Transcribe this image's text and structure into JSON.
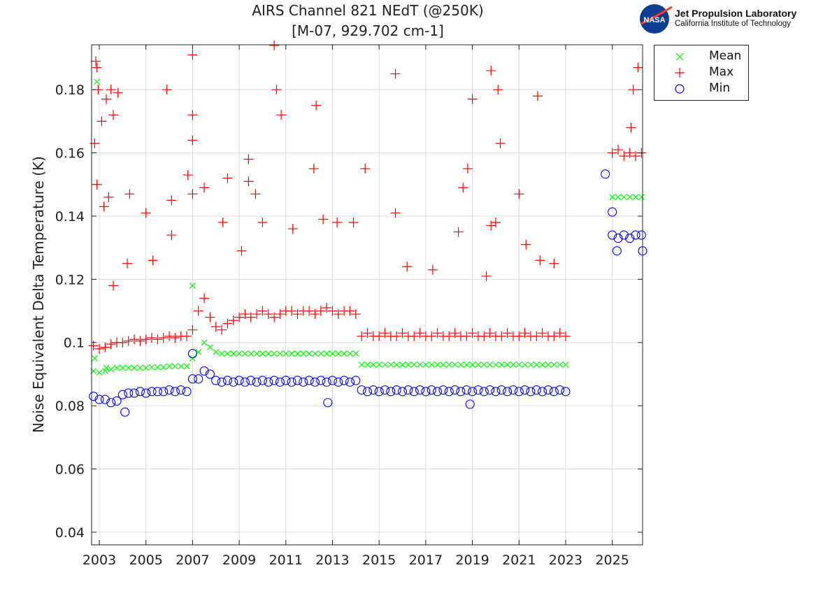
{
  "chart_data": {
    "type": "scatter",
    "title": [
      "AIRS Channel 821 NEdT (@250K)",
      "[M-07, 929.702 cm-1]"
    ],
    "xlabel": "",
    "ylabel": "Noise Equivalent Delta Temperature (K)",
    "xlim": [
      2002.67,
      2026.3
    ],
    "ylim": [
      0.036,
      0.1942
    ],
    "xticks": [
      2003,
      2005,
      2007,
      2009,
      2011,
      2013,
      2015,
      2017,
      2019,
      2021,
      2023,
      2025
    ],
    "xtick_labels": [
      "2003",
      "2005",
      "2007",
      "2009",
      "2011",
      "2013",
      "2015",
      "2017",
      "2019",
      "2021",
      "2023",
      "2025"
    ],
    "yticks": [
      0.04,
      0.06,
      0.08,
      0.1,
      0.12,
      0.14,
      0.16,
      0.18
    ],
    "ytick_labels": [
      "0.04",
      "0.06",
      "0.08",
      "0.1",
      "0.12",
      "0.14",
      "0.16",
      "0.18"
    ],
    "grid": true,
    "legend_position": "outside-top-right",
    "x": [
      2002.75,
      2003,
      2003.25,
      2003.5,
      2003.75,
      2004,
      2004.25,
      2004.5,
      2004.75,
      2005,
      2005.25,
      2005.5,
      2005.75,
      2006,
      2006.25,
      2006.5,
      2006.75,
      2007,
      2007.25,
      2007.5,
      2007.75,
      2008,
      2008.25,
      2008.5,
      2008.75,
      2009,
      2009.25,
      2009.5,
      2009.75,
      2010,
      2010.25,
      2010.5,
      2010.75,
      2011,
      2011.25,
      2011.5,
      2011.75,
      2012,
      2012.25,
      2012.5,
      2012.75,
      2013,
      2013.25,
      2013.5,
      2013.75,
      2014,
      2014.25,
      2014.5,
      2014.75,
      2015,
      2015.25,
      2015.5,
      2015.75,
      2016,
      2016.25,
      2016.5,
      2016.75,
      2017,
      2017.25,
      2017.5,
      2017.75,
      2018,
      2018.25,
      2018.5,
      2018.75,
      2019,
      2019.25,
      2019.5,
      2019.75,
      2020,
      2020.25,
      2020.5,
      2020.75,
      2021,
      2021.25,
      2021.5,
      2021.75,
      2022,
      2022.25,
      2022.5,
      2022.75,
      2023,
      2025,
      2025.25,
      2025.5,
      2025.75,
      2026,
      2026.25
    ],
    "series": [
      {
        "name": "Mean",
        "color": "#00ff00",
        "marker": "x",
        "values": [
          0.091,
          0.0905,
          0.091,
          0.0915,
          0.092,
          0.092,
          0.092,
          0.092,
          0.092,
          0.092,
          0.0922,
          0.0922,
          0.0922,
          0.0925,
          0.0925,
          0.0925,
          0.0925,
          0.095,
          0.097,
          0.1,
          0.0985,
          0.097,
          0.0965,
          0.0965,
          0.0965,
          0.0965,
          0.0965,
          0.0965,
          0.0965,
          0.0965,
          0.0965,
          0.0965,
          0.0965,
          0.0965,
          0.0965,
          0.0965,
          0.0965,
          0.0965,
          0.0965,
          0.0965,
          0.0965,
          0.0965,
          0.0965,
          0.0965,
          0.0965,
          0.0965,
          0.093,
          0.093,
          0.093,
          0.093,
          0.093,
          0.093,
          0.093,
          0.093,
          0.093,
          0.093,
          0.093,
          0.093,
          0.093,
          0.093,
          0.093,
          0.093,
          0.093,
          0.093,
          0.093,
          0.093,
          0.093,
          0.093,
          0.093,
          0.093,
          0.093,
          0.093,
          0.093,
          0.093,
          0.093,
          0.093,
          0.093,
          0.093,
          0.093,
          0.093,
          0.093,
          0.093,
          0.146,
          0.146,
          0.146,
          0.146,
          0.146,
          0.146
        ],
        "outliers": [
          [
            2002.9,
            0.1825
          ],
          [
            2002.8,
            0.095
          ],
          [
            2007.0,
            0.118
          ],
          [
            2003.3,
            0.092
          ]
        ]
      },
      {
        "name": "Max",
        "color": "#ff0000",
        "marker": "+",
        "values": [
          0.099,
          0.098,
          0.0985,
          0.0995,
          0.1,
          0.1,
          0.1005,
          0.101,
          0.1005,
          0.101,
          0.1015,
          0.101,
          0.1015,
          0.102,
          0.1015,
          0.102,
          0.102,
          0.104,
          0.11,
          0.114,
          0.108,
          0.105,
          0.104,
          0.106,
          0.107,
          0.108,
          0.109,
          0.108,
          0.109,
          0.11,
          0.109,
          0.108,
          0.109,
          0.11,
          0.11,
          0.109,
          0.11,
          0.11,
          0.109,
          0.11,
          0.111,
          0.11,
          0.109,
          0.11,
          0.11,
          0.109,
          0.102,
          0.103,
          0.102,
          0.102,
          0.103,
          0.102,
          0.102,
          0.103,
          0.102,
          0.102,
          0.103,
          0.102,
          0.102,
          0.103,
          0.102,
          0.102,
          0.103,
          0.102,
          0.102,
          0.103,
          0.102,
          0.102,
          0.103,
          0.102,
          0.102,
          0.103,
          0.102,
          0.102,
          0.103,
          0.102,
          0.102,
          0.103,
          0.102,
          0.102,
          0.103,
          0.102,
          0.16,
          0.161,
          0.159,
          0.16,
          0.159,
          0.16
        ],
        "outliers": [
          [
            2002.85,
            0.189
          ],
          [
            2002.9,
            0.187
          ],
          [
            2002.95,
            0.18
          ],
          [
            2002.8,
            0.163
          ],
          [
            2003.1,
            0.17
          ],
          [
            2003.3,
            0.177
          ],
          [
            2003.5,
            0.18
          ],
          [
            2003.6,
            0.172
          ],
          [
            2003.8,
            0.179
          ],
          [
            2002.9,
            0.15
          ],
          [
            2003.2,
            0.143
          ],
          [
            2003.4,
            0.146
          ],
          [
            2004.3,
            0.147
          ],
          [
            2005.9,
            0.18
          ],
          [
            2005.0,
            0.141
          ],
          [
            2006.1,
            0.145
          ],
          [
            2006.1,
            0.134
          ],
          [
            2006.8,
            0.153
          ],
          [
            2007.0,
            0.191
          ],
          [
            2007.0,
            0.172
          ],
          [
            2007.0,
            0.164
          ],
          [
            2007.0,
            0.147
          ],
          [
            2007.5,
            0.149
          ],
          [
            2008.5,
            0.152
          ],
          [
            2009.4,
            0.158
          ],
          [
            2009.4,
            0.151
          ],
          [
            2009.7,
            0.147
          ],
          [
            2010.5,
            0.194
          ],
          [
            2010.6,
            0.18
          ],
          [
            2010.8,
            0.172
          ],
          [
            2012.3,
            0.175
          ],
          [
            2012.2,
            0.155
          ],
          [
            2011.3,
            0.136
          ],
          [
            2012.6,
            0.139
          ],
          [
            2013.2,
            0.138
          ],
          [
            2013.9,
            0.138
          ],
          [
            2014.4,
            0.155
          ],
          [
            2015.7,
            0.185
          ],
          [
            2015.7,
            0.141
          ],
          [
            2018.4,
            0.135
          ],
          [
            2018.6,
            0.149
          ],
          [
            2018.8,
            0.155
          ],
          [
            2019.0,
            0.177
          ],
          [
            2019.8,
            0.186
          ],
          [
            2020.1,
            0.18
          ],
          [
            2020.2,
            0.163
          ],
          [
            2020.0,
            0.138
          ],
          [
            2019.8,
            0.137
          ],
          [
            2021.0,
            0.147
          ],
          [
            2021.3,
            0.131
          ],
          [
            2021.8,
            0.178
          ],
          [
            2021.9,
            0.126
          ],
          [
            2025.9,
            0.18
          ],
          [
            2026.1,
            0.187
          ],
          [
            2025.8,
            0.168
          ],
          [
            2003.6,
            0.118
          ],
          [
            2004.2,
            0.125
          ],
          [
            2005.3,
            0.126
          ],
          [
            2008.3,
            0.138
          ],
          [
            2009.1,
            0.129
          ],
          [
            2010.0,
            0.138
          ],
          [
            2016.2,
            0.124
          ],
          [
            2017.3,
            0.123
          ],
          [
            2019.6,
            0.121
          ],
          [
            2022.5,
            0.125
          ]
        ]
      },
      {
        "name": "Min",
        "color": "#0000ff",
        "marker": "o",
        "values": [
          0.083,
          0.082,
          0.082,
          0.081,
          0.0815,
          0.0835,
          0.084,
          0.084,
          0.0845,
          0.084,
          0.0845,
          0.0845,
          0.0845,
          0.085,
          0.0845,
          0.085,
          0.0845,
          0.0885,
          0.0885,
          0.091,
          0.09,
          0.088,
          0.0875,
          0.088,
          0.0875,
          0.088,
          0.0875,
          0.088,
          0.0875,
          0.088,
          0.0875,
          0.088,
          0.0875,
          0.088,
          0.0875,
          0.088,
          0.0875,
          0.088,
          0.0875,
          0.088,
          0.0875,
          0.088,
          0.0875,
          0.088,
          0.0875,
          0.088,
          0.085,
          0.0845,
          0.085,
          0.0845,
          0.085,
          0.0845,
          0.085,
          0.0845,
          0.085,
          0.0845,
          0.085,
          0.0845,
          0.085,
          0.0845,
          0.085,
          0.0845,
          0.085,
          0.0845,
          0.085,
          0.0845,
          0.085,
          0.0845,
          0.085,
          0.0845,
          0.085,
          0.0845,
          0.085,
          0.0845,
          0.085,
          0.0845,
          0.085,
          0.0845,
          0.085,
          0.0845,
          0.085,
          0.0845,
          0.134,
          0.133,
          0.134,
          0.133,
          0.134,
          0.134
        ],
        "outliers": [
          [
            2024.7,
            0.1533
          ],
          [
            2025.0,
            0.1413
          ],
          [
            2007.0,
            0.0965
          ],
          [
            2004.1,
            0.078
          ],
          [
            2012.8,
            0.081
          ],
          [
            2018.9,
            0.0805
          ],
          [
            2025.2,
            0.129
          ],
          [
            2026.3,
            0.129
          ]
        ]
      }
    ]
  },
  "logo": {
    "line1": "Jet Propulsion Laboratory",
    "line2": "California Institute of Technology",
    "badge": "NASA"
  }
}
